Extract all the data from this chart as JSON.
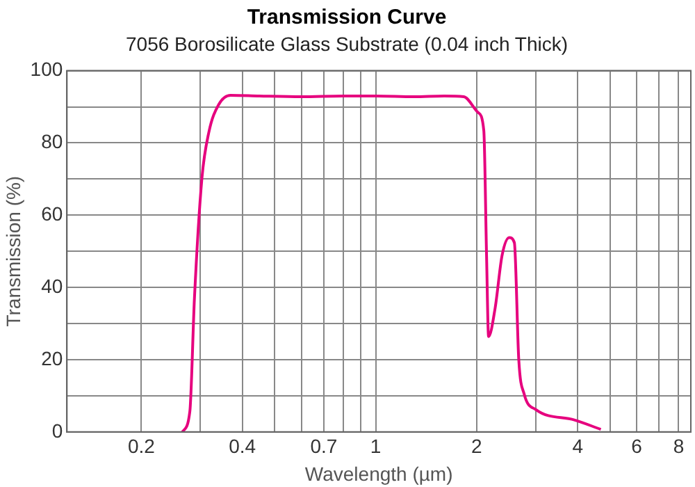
{
  "chart_data": {
    "type": "line",
    "title": "Transmission Curve",
    "subtitle": "7056 Borosilicate Glass Substrate (0.04 inch Thick)",
    "xlabel": "Wavelength (µm)",
    "ylabel": "Transmission (%)",
    "log": "x",
    "xlim": [
      0.12,
      8.7
    ],
    "xticks": [
      0.2,
      {
        "value": 0.3,
        "label": null
      },
      0.4,
      {
        "value": 0.5,
        "label": null
      },
      {
        "value": 0.6,
        "label": null
      },
      0.7,
      {
        "value": 0.8,
        "label": null
      },
      {
        "value": 0.9,
        "label": null
      },
      1,
      2,
      {
        "value": 3,
        "label": null
      },
      4,
      {
        "value": 5,
        "label": null
      },
      6,
      {
        "value": 7,
        "label": null
      },
      8
    ],
    "ylim": [
      0,
      100
    ],
    "yticks": [
      0,
      {
        "value": 10,
        "label": null
      },
      20,
      {
        "value": 30,
        "label": null
      },
      40,
      {
        "value": 50,
        "label": null
      },
      60,
      {
        "value": 70,
        "label": null
      },
      80,
      {
        "value": 90,
        "label": null
      },
      100
    ],
    "grid": true,
    "legend": false,
    "marker": "none",
    "line_style": "solid",
    "series": [
      {
        "color": "#e6007e",
        "x": [
          0.265,
          0.279,
          0.288,
          0.303,
          0.318,
          0.34,
          0.369,
          0.45,
          0.6,
          0.8,
          1.0,
          1.3,
          1.6,
          1.83,
          2.02,
          2.1,
          2.14,
          2.17,
          2.27,
          2.38,
          2.5,
          2.59,
          2.67,
          2.77,
          3.0,
          3.91,
          4.69
        ],
        "values": [
          0,
          5.6,
          37,
          70,
          83,
          90.6,
          93.2,
          93,
          92.8,
          93,
          93,
          92.8,
          93,
          92.8,
          88.4,
          83.4,
          48.8,
          26.4,
          34.3,
          48.8,
          53.8,
          52.4,
          19.9,
          10.5,
          6.2,
          3.3,
          0.7
        ]
      }
    ]
  }
}
